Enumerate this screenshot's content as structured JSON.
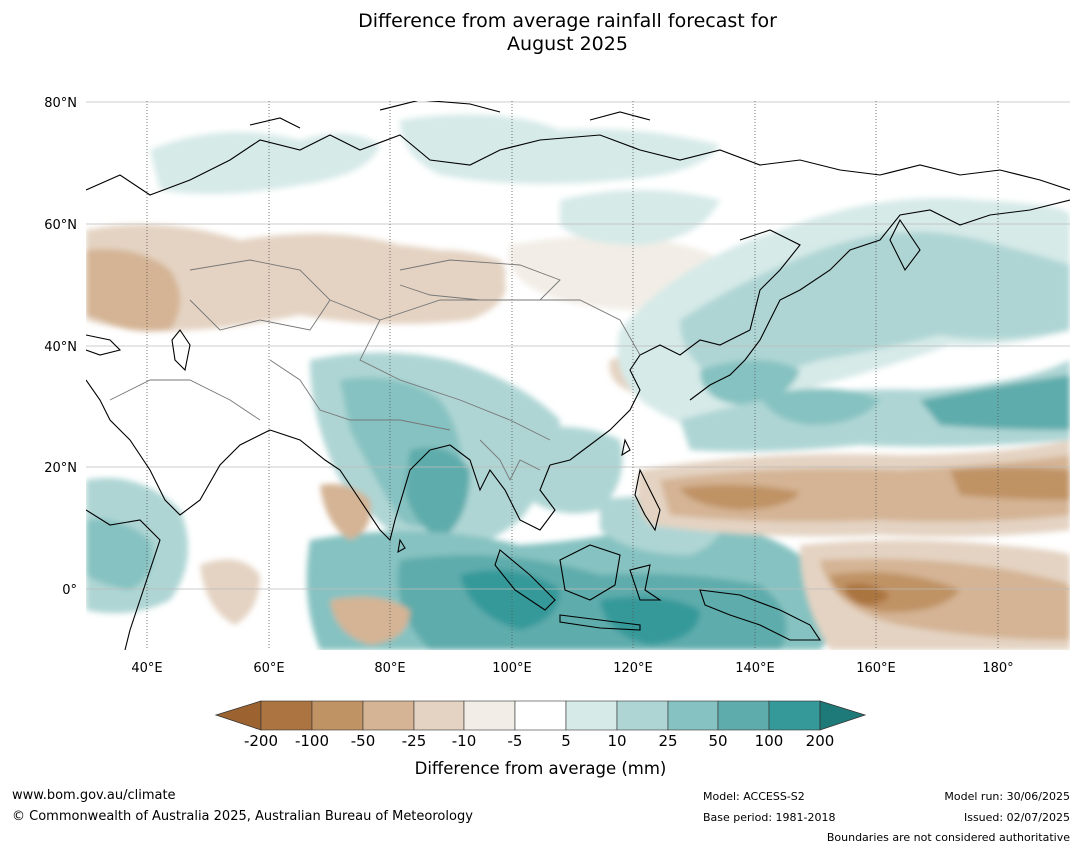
{
  "title_line1": "Difference from average rainfall forecast for",
  "title_line2": "August 2025",
  "map": {
    "lat_labels": [
      "80°N",
      "60°N",
      "40°N",
      "20°N",
      "0°"
    ],
    "lon_labels": [
      "40°E",
      "60°E",
      "80°E",
      "100°E",
      "120°E",
      "140°E",
      "160°E",
      "180°"
    ]
  },
  "colorbar": {
    "title": "Difference from average (mm)",
    "ticks": [
      "-200",
      "-100",
      "-50",
      "-25",
      "-10",
      "-5",
      "5",
      "10",
      "25",
      "50",
      "100",
      "200"
    ],
    "colors": [
      "#9c6330",
      "#ab7440",
      "#c09365",
      "#d4b494",
      "#e4d3c2",
      "#f2ede6",
      "#ffffff",
      "#d6eae8",
      "#aed5d4",
      "#86c2c1",
      "#5eacac",
      "#35999a",
      "#1e7a79"
    ]
  },
  "footer": {
    "url": "www.bom.gov.au/climate",
    "copyright": "© Commonwealth of Australia 2025, Australian Bureau of Meteorology",
    "model": "Model: ACCESS-S2",
    "base_period": "Base period: 1981-2018",
    "model_run": "Model run: 30/06/2025",
    "issued": "Issued: 02/07/2025",
    "disclaimer": "Boundaries are not considered authoritative"
  }
}
